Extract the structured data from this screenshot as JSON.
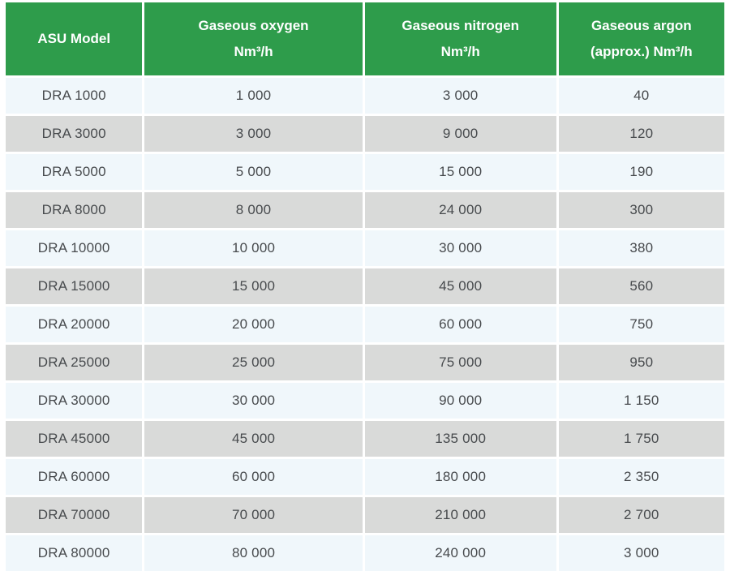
{
  "colors": {
    "header_bg": "#2e9c4b",
    "header_text": "#ffffff",
    "row_light_bg": "#f0f7fb",
    "row_grey_bg": "#d9dad9",
    "cell_text": "#474a4d",
    "page_bg": "#ffffff"
  },
  "chart_data": {
    "type": "table",
    "columns": [
      {
        "id": "model",
        "line1": "ASU Model",
        "line2": ""
      },
      {
        "id": "oxygen",
        "line1": "Gaseous oxygen",
        "line2": "Nm³/h"
      },
      {
        "id": "nitrogen",
        "line1": "Gaseous nitrogen",
        "line2": "Nm³/h"
      },
      {
        "id": "argon",
        "line1": "Gaseous argon",
        "line2": "(approx.) Nm³/h"
      }
    ],
    "rows": [
      {
        "model": "DRA 1000",
        "oxygen": "1 000",
        "nitrogen": "3 000",
        "argon": "40"
      },
      {
        "model": "DRA 3000",
        "oxygen": "3 000",
        "nitrogen": "9 000",
        "argon": "120"
      },
      {
        "model": "DRA 5000",
        "oxygen": "5 000",
        "nitrogen": "15 000",
        "argon": "190"
      },
      {
        "model": "DRA 8000",
        "oxygen": "8 000",
        "nitrogen": "24 000",
        "argon": "300"
      },
      {
        "model": "DRA 10000",
        "oxygen": "10 000",
        "nitrogen": "30 000",
        "argon": "380"
      },
      {
        "model": "DRA 15000",
        "oxygen": "15 000",
        "nitrogen": "45 000",
        "argon": "560"
      },
      {
        "model": "DRA 20000",
        "oxygen": "20 000",
        "nitrogen": "60 000",
        "argon": "750"
      },
      {
        "model": "DRA 25000",
        "oxygen": "25 000",
        "nitrogen": "75 000",
        "argon": "950"
      },
      {
        "model": "DRA 30000",
        "oxygen": "30 000",
        "nitrogen": "90 000",
        "argon": "1 150"
      },
      {
        "model": "DRA 45000",
        "oxygen": "45 000",
        "nitrogen": "135 000",
        "argon": "1 750"
      },
      {
        "model": "DRA 60000",
        "oxygen": "60 000",
        "nitrogen": "180 000",
        "argon": "2 350"
      },
      {
        "model": "DRA 70000",
        "oxygen": "70 000",
        "nitrogen": "210 000",
        "argon": "2 700"
      },
      {
        "model": "DRA 80000",
        "oxygen": "80 000",
        "nitrogen": "240 000",
        "argon": "3 000"
      }
    ]
  }
}
